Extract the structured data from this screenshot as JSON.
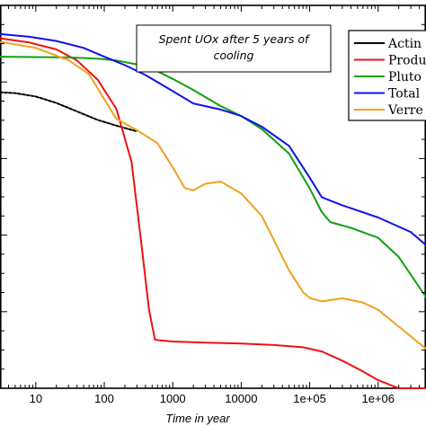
{
  "chart_data": {
    "type": "line",
    "xscale": "log",
    "xlabel": "Time in year",
    "ylabel": "",
    "annotation": [
      "Spent UOx after 5 years of",
      "cooling"
    ],
    "x_ticks": [
      {
        "value": 10,
        "label": "10"
      },
      {
        "value": 100,
        "label": "100"
      },
      {
        "value": 1000,
        "label": "1000"
      },
      {
        "value": 10000,
        "label": "10000"
      },
      {
        "value": 100000,
        "label": "1e+05"
      },
      {
        "value": 1000000,
        "label": "1e+06"
      }
    ],
    "xlim": [
      3,
      5000000
    ],
    "ylim": [
      0,
      1
    ],
    "y_note": "y values are relative heights (fraction of plot height, 0 = bottom axis, 1 = top axis); the y-axis tick labels are cropped out of the image",
    "legend_position": "top-right",
    "series": [
      {
        "name": "Actin",
        "color": "#000000",
        "x": [
          3,
          5,
          10,
          20,
          40,
          80,
          150,
          300
        ],
        "y": [
          0.773,
          0.771,
          0.762,
          0.745,
          0.723,
          0.701,
          0.686,
          0.671
        ]
      },
      {
        "name": "Produ",
        "color": "#ee1111",
        "x": [
          3,
          8,
          20,
          40,
          80,
          150,
          250,
          350,
          450,
          550,
          650,
          1000,
          3000,
          10000,
          30000,
          80000,
          150000,
          300000,
          600000,
          1000000,
          2000000,
          5000000
        ],
        "y": [
          0.914,
          0.903,
          0.885,
          0.856,
          0.806,
          0.73,
          0.592,
          0.374,
          0.205,
          0.127,
          0.125,
          0.122,
          0.119,
          0.117,
          0.113,
          0.107,
          0.096,
          0.072,
          0.044,
          0.021,
          0.0,
          0.0
        ]
      },
      {
        "name": "Pluto",
        "color": "#11a011",
        "x": [
          3,
          10,
          30,
          80,
          150,
          300,
          600,
          1000,
          2000,
          5000,
          10000,
          20000,
          50000,
          100000,
          150000,
          200000,
          400000,
          1000000,
          2000000,
          5000000
        ],
        "y": [
          0.866,
          0.865,
          0.864,
          0.861,
          0.856,
          0.846,
          0.828,
          0.808,
          0.779,
          0.737,
          0.711,
          0.677,
          0.613,
          0.522,
          0.46,
          0.434,
          0.419,
          0.393,
          0.343,
          0.238
        ]
      },
      {
        "name": "Total",
        "color": "#1111ee",
        "x": [
          3,
          8,
          20,
          50,
          100,
          200,
          400,
          1000,
          2000,
          5000,
          10000,
          20000,
          50000,
          100000,
          150000,
          300000,
          1000000,
          3000000,
          5000000
        ],
        "y": [
          0.925,
          0.918,
          0.907,
          0.889,
          0.866,
          0.844,
          0.818,
          0.776,
          0.744,
          0.728,
          0.711,
          0.683,
          0.633,
          0.55,
          0.499,
          0.478,
          0.446,
          0.408,
          0.374
        ]
      },
      {
        "name": "Verre",
        "color": "#f0a020",
        "x": [
          3,
          10,
          30,
          60,
          100,
          150,
          300,
          600,
          1000,
          1500,
          2000,
          3000,
          5000,
          10000,
          20000,
          50000,
          80000,
          100000,
          150000,
          300000,
          600000,
          1000000,
          2000000,
          5000000
        ],
        "y": [
          0.905,
          0.889,
          0.857,
          0.82,
          0.755,
          0.704,
          0.674,
          0.64,
          0.577,
          0.523,
          0.517,
          0.534,
          0.54,
          0.509,
          0.45,
          0.308,
          0.251,
          0.236,
          0.227,
          0.235,
          0.224,
          0.205,
          0.161,
          0.103
        ]
      }
    ]
  }
}
